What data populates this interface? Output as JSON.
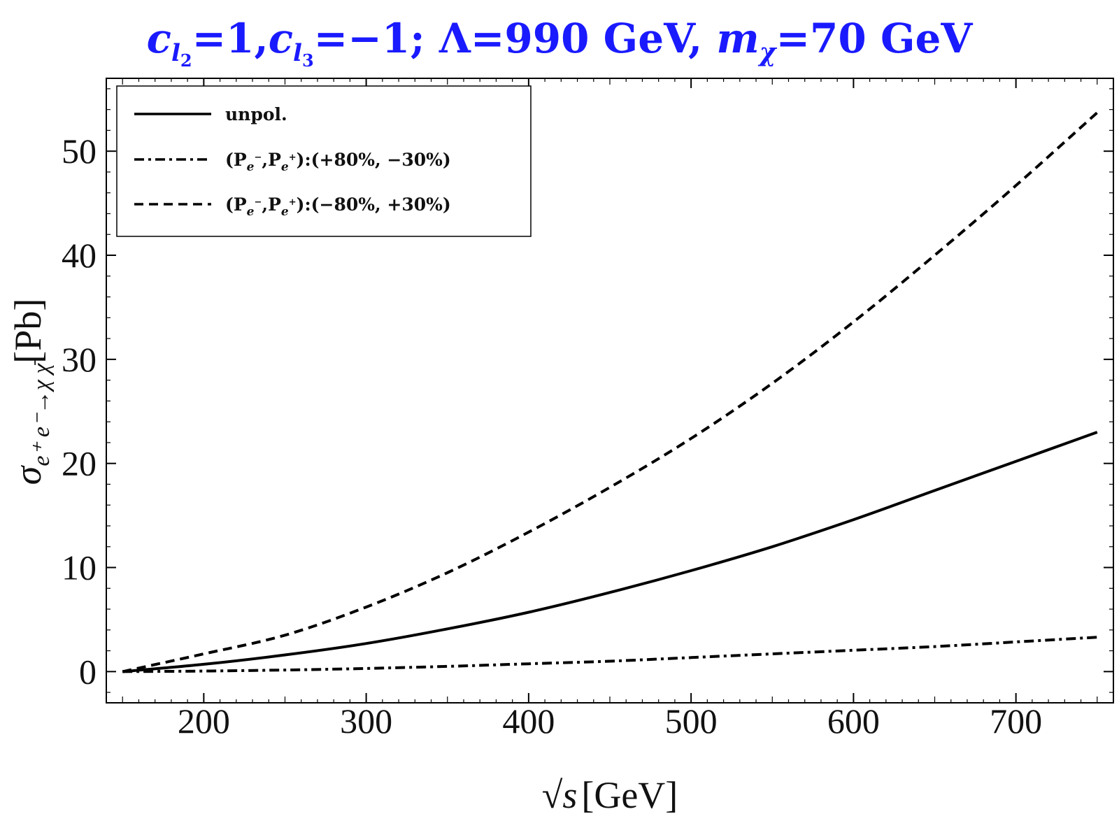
{
  "chart_data": {
    "type": "line",
    "title": {
      "c1_sym": "c",
      "c1_sub": "l",
      "c1_subsub": "2",
      "c1_val": "=1,",
      "c2_sym": "c",
      "c2_sub": "l",
      "c2_subsub": "3",
      "c2_val": "=−1; Λ=990 GeV, ",
      "m_sym": "m",
      "m_sub": "χ",
      "m_val": "=70 GeV"
    },
    "xlabel": {
      "sqrt": "√",
      "var": "s",
      "unit": "[GeV]"
    },
    "ylabel": {
      "sym": "σ",
      "sub": "e⁺ e⁻→χ χ̄",
      "unit": "[Pb]"
    },
    "xlim": [
      140,
      760
    ],
    "ylim": [
      -3,
      57
    ],
    "xticks": [
      200,
      300,
      400,
      500,
      600,
      700
    ],
    "yticks": [
      0,
      10,
      20,
      30,
      40,
      50
    ],
    "x": [
      150,
      200,
      250,
      300,
      350,
      400,
      450,
      500,
      550,
      600,
      650,
      700,
      750
    ],
    "series": [
      {
        "name": "unpol.",
        "style": "solid",
        "values": [
          0,
          0.7,
          1.6,
          2.7,
          4.1,
          5.7,
          7.6,
          9.7,
          12.0,
          14.6,
          17.4,
          20.2,
          23.0
        ]
      },
      {
        "name": "(P_{e⁻},P_{e⁺}):(+80%, −30%)",
        "style": "dashdot",
        "values": [
          0,
          0.05,
          0.15,
          0.3,
          0.5,
          0.75,
          1.0,
          1.35,
          1.7,
          2.05,
          2.4,
          2.85,
          3.3
        ]
      },
      {
        "name": "(P_{e⁻},P_{e⁺}):(−80%, +30%)",
        "style": "dashed",
        "values": [
          0,
          1.7,
          3.5,
          6.2,
          9.5,
          13.4,
          17.7,
          22.4,
          27.7,
          33.6,
          40.0,
          46.7,
          53.7
        ]
      }
    ],
    "legend": {
      "placement": "top-left",
      "entries": [
        {
          "text": "unpol."
        },
        {
          "text_a": "(P",
          "sub_a": "e",
          "sup_a": "−",
          "text_b": ",P",
          "sub_b": "e",
          "sup_b": "+",
          "text_c": "):(+80%, −30%)"
        },
        {
          "text_a": "(P",
          "sub_a": "e",
          "sup_a": "−",
          "text_b": ",P",
          "sub_b": "e",
          "sup_b": "+",
          "text_c": "):(−80%, +30%)"
        }
      ]
    },
    "grid": false,
    "colors": {
      "title": "#1a1aff",
      "lines": "#000000"
    }
  }
}
